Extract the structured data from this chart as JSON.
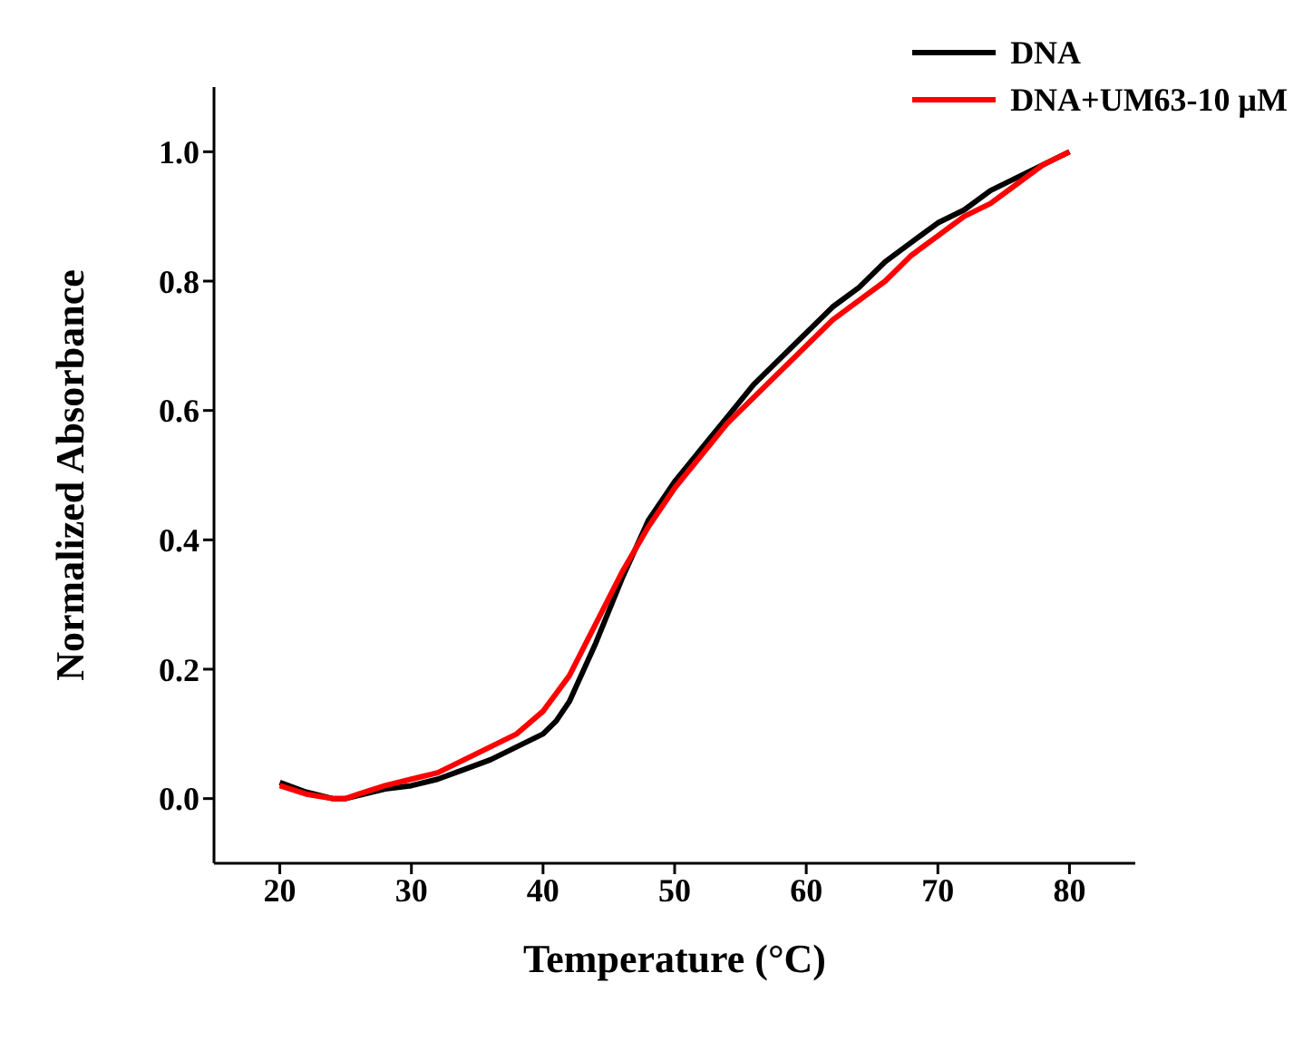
{
  "chart_data": {
    "type": "line",
    "xlabel": "Temperature (°C)",
    "ylabel": "Normalized Absorbance",
    "xlim": [
      15,
      85
    ],
    "xticks": [
      20,
      30,
      40,
      50,
      60,
      70,
      80
    ],
    "ylim": [
      -0.1,
      1.1
    ],
    "yticks": [
      {
        "value": 0,
        "label": "0.0"
      },
      0.2,
      0.4,
      0.6,
      0.8,
      {
        "value": 1,
        "label": "1.0"
      }
    ],
    "legend": "top right",
    "grid": false,
    "marker": "none",
    "line_style": "solid",
    "series": [
      {
        "name": "DNA",
        "color": "#000000",
        "x": [
          20,
          22,
          24,
          25,
          26,
          28,
          30,
          32,
          34,
          36,
          38,
          40,
          41,
          42,
          44,
          46,
          48,
          50,
          52,
          54,
          56,
          58,
          60,
          62,
          64,
          66,
          68,
          70,
          72,
          74,
          76,
          78,
          80
        ],
        "values": [
          0.025,
          0.01,
          0.0,
          0.0,
          0.005,
          0.015,
          0.02,
          0.03,
          0.045,
          0.06,
          0.08,
          0.1,
          0.12,
          0.15,
          0.24,
          0.34,
          0.43,
          0.49,
          0.54,
          0.59,
          0.64,
          0.68,
          0.72,
          0.76,
          0.79,
          0.83,
          0.86,
          0.89,
          0.91,
          0.94,
          0.96,
          0.98,
          1.0
        ]
      },
      {
        "name": "DNA+UM63-10 μM",
        "color": "#ff0000",
        "x": [
          20,
          22,
          24,
          25,
          26,
          28,
          30,
          32,
          34,
          36,
          38,
          40,
          42,
          44,
          46,
          48,
          50,
          52,
          54,
          56,
          58,
          60,
          62,
          64,
          66,
          68,
          70,
          72,
          74,
          76,
          78,
          80
        ],
        "values": [
          0.02,
          0.007,
          0.0,
          0.0,
          0.007,
          0.02,
          0.03,
          0.04,
          0.06,
          0.08,
          0.1,
          0.135,
          0.19,
          0.27,
          0.35,
          0.42,
          0.48,
          0.53,
          0.58,
          0.62,
          0.66,
          0.7,
          0.74,
          0.77,
          0.8,
          0.84,
          0.87,
          0.9,
          0.92,
          0.95,
          0.98,
          1.0
        ]
      }
    ]
  }
}
